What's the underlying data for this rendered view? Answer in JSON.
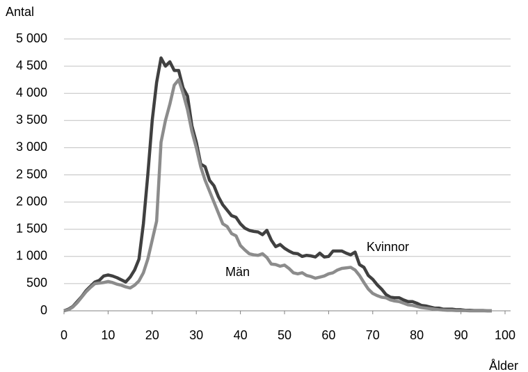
{
  "chart_data": {
    "type": "line",
    "y_label": "Antal",
    "x_label": "Ålder",
    "x": [
      0,
      1,
      2,
      3,
      4,
      5,
      6,
      7,
      8,
      9,
      10,
      11,
      12,
      13,
      14,
      15,
      16,
      17,
      18,
      19,
      20,
      21,
      22,
      23,
      24,
      25,
      26,
      27,
      28,
      29,
      30,
      31,
      32,
      33,
      34,
      35,
      36,
      37,
      38,
      39,
      40,
      41,
      42,
      43,
      44,
      45,
      46,
      47,
      48,
      49,
      50,
      51,
      52,
      53,
      54,
      55,
      56,
      57,
      58,
      59,
      60,
      61,
      62,
      63,
      64,
      65,
      66,
      67,
      68,
      69,
      70,
      71,
      72,
      73,
      74,
      75,
      76,
      77,
      78,
      79,
      80,
      81,
      82,
      83,
      84,
      85,
      86,
      87,
      88,
      89,
      90,
      91,
      92,
      93,
      94,
      95,
      96,
      97
    ],
    "series": [
      {
        "name": "Kvinnor",
        "color": "#404040",
        "values": [
          0,
          30,
          80,
          170,
          260,
          370,
          450,
          530,
          560,
          640,
          660,
          640,
          610,
          570,
          530,
          620,
          750,
          950,
          1600,
          2500,
          3500,
          4200,
          4650,
          4500,
          4580,
          4420,
          4420,
          4100,
          3950,
          3400,
          3100,
          2700,
          2650,
          2400,
          2300,
          2100,
          1950,
          1850,
          1750,
          1720,
          1600,
          1520,
          1480,
          1460,
          1450,
          1400,
          1480,
          1300,
          1180,
          1220,
          1150,
          1100,
          1060,
          1050,
          1000,
          1020,
          1010,
          990,
          1060,
          990,
          1000,
          1100,
          1100,
          1100,
          1060,
          1030,
          1080,
          850,
          800,
          650,
          580,
          480,
          400,
          300,
          250,
          240,
          240,
          200,
          170,
          170,
          140,
          100,
          90,
          70,
          50,
          50,
          30,
          30,
          30,
          20,
          20,
          10,
          10,
          5,
          5,
          5,
          0,
          0
        ]
      },
      {
        "name": "Män",
        "color": "#8c8c8c",
        "values": [
          0,
          20,
          70,
          150,
          250,
          350,
          430,
          500,
          510,
          520,
          540,
          520,
          490,
          470,
          440,
          420,
          470,
          550,
          700,
          950,
          1300,
          1650,
          3100,
          3500,
          3800,
          4150,
          4250,
          4000,
          3700,
          3300,
          3000,
          2650,
          2400,
          2200,
          2000,
          1800,
          1600,
          1550,
          1420,
          1380,
          1200,
          1120,
          1050,
          1030,
          1020,
          1050,
          980,
          860,
          850,
          820,
          840,
          780,
          700,
          680,
          700,
          650,
          630,
          600,
          620,
          640,
          680,
          700,
          750,
          780,
          790,
          800,
          750,
          650,
          520,
          400,
          320,
          280,
          250,
          240,
          200,
          180,
          170,
          140,
          110,
          100,
          80,
          60,
          50,
          40,
          30,
          20,
          15,
          10,
          10,
          5,
          5,
          5,
          0,
          0,
          0,
          0,
          0,
          0
        ]
      }
    ],
    "xlim": [
      0,
      100
    ],
    "xticks": [
      0,
      10,
      20,
      30,
      40,
      50,
      60,
      70,
      80,
      90,
      100
    ],
    "ylim": [
      0,
      5000
    ],
    "yticks": [
      0,
      500,
      {
        "value": 1000,
        "label": "1 000"
      },
      {
        "value": 1500,
        "label": "1 500"
      },
      {
        "value": 2000,
        "label": "2 000"
      },
      {
        "value": 2500,
        "label": "2 500"
      },
      {
        "value": 3000,
        "label": "3 000"
      },
      {
        "value": 3500,
        "label": "3 500"
      },
      {
        "value": 4000,
        "label": "4 000"
      },
      {
        "value": 4500,
        "label": "4 500"
      },
      {
        "value": 5000,
        "label": "5 000"
      }
    ],
    "grid": true
  }
}
